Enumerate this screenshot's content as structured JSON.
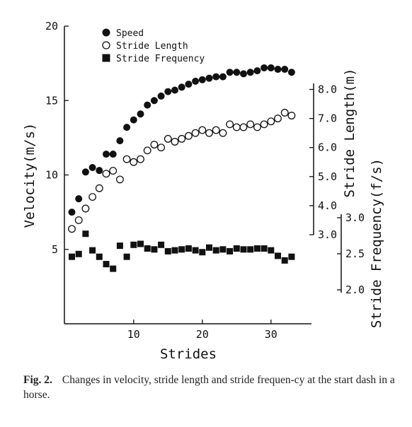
{
  "chart_data": {
    "type": "scatter",
    "x_axis": {
      "label": "Strides",
      "range": [
        0,
        35
      ],
      "ticks": [
        "10",
        "20",
        "30"
      ],
      "tick_values": [
        10,
        20,
        30
      ]
    },
    "y_axes": [
      {
        "id": "velocity",
        "label": "Velocity(m/s)",
        "range": [
          0,
          20
        ],
        "ticks": [
          "5",
          "10",
          "15",
          "20"
        ],
        "tick_values": [
          5,
          10,
          15,
          20
        ]
      },
      {
        "id": "stride_length",
        "label": "Stride Length(m)",
        "range": [
          3.0,
          8.0
        ],
        "ticks": [
          "3.0",
          "4.0",
          "5.0",
          "6.0",
          "7.0",
          "8.0"
        ],
        "tick_values": [
          3,
          4,
          5,
          6,
          7,
          8
        ]
      },
      {
        "id": "stride_frequency",
        "label": "Stride Frequency(f/s)",
        "range": [
          2.0,
          3.0
        ],
        "ticks": [
          "2.0",
          "2.5",
          "3.0"
        ],
        "tick_values": [
          2.0,
          2.5,
          3.0
        ]
      }
    ],
    "legend_position": "top-left",
    "grid": false,
    "series": [
      {
        "name": "Speed",
        "marker": "filled-circle",
        "axis": "velocity",
        "x": [
          1,
          2,
          3,
          4,
          5,
          6,
          7,
          8,
          9,
          10,
          11,
          12,
          13,
          14,
          15,
          16,
          17,
          18,
          19,
          20,
          21,
          22,
          23,
          24,
          25,
          26,
          27,
          28,
          29,
          30,
          31,
          32,
          33
        ],
        "values": [
          7.5,
          8.4,
          10.2,
          10.5,
          10.3,
          11.4,
          11.4,
          12.3,
          13.2,
          13.7,
          14.1,
          14.7,
          15.0,
          15.3,
          15.6,
          15.7,
          15.9,
          16.1,
          16.3,
          16.4,
          16.5,
          16.6,
          16.6,
          16.9,
          16.9,
          16.8,
          16.9,
          17.0,
          17.2,
          17.2,
          17.1,
          17.1,
          16.9
        ]
      },
      {
        "name": "Stride Length",
        "marker": "open-circle",
        "axis": "stride_length",
        "x": [
          1,
          2,
          3,
          4,
          5,
          6,
          7,
          8,
          9,
          10,
          11,
          12,
          13,
          14,
          15,
          16,
          17,
          18,
          19,
          20,
          21,
          22,
          23,
          24,
          25,
          26,
          27,
          28,
          29,
          30,
          31,
          32,
          33
        ],
        "values": [
          3.2,
          3.5,
          3.9,
          4.3,
          4.6,
          5.1,
          5.2,
          4.9,
          5.6,
          5.5,
          5.6,
          5.9,
          6.1,
          6.0,
          6.3,
          6.2,
          6.3,
          6.4,
          6.5,
          6.6,
          6.5,
          6.6,
          6.5,
          6.8,
          6.7,
          6.7,
          6.8,
          6.7,
          6.8,
          6.9,
          7.0,
          7.2,
          7.1
        ]
      },
      {
        "name": "Stride Frequency",
        "marker": "filled-square",
        "axis": "stride_frequency",
        "x": [
          1,
          2,
          3,
          4,
          5,
          6,
          7,
          8,
          9,
          10,
          11,
          12,
          13,
          14,
          15,
          16,
          17,
          18,
          19,
          20,
          21,
          22,
          23,
          24,
          25,
          26,
          27,
          28,
          29,
          30,
          31,
          32,
          33
        ],
        "values": [
          2.42,
          2.45,
          2.67,
          2.49,
          2.42,
          2.34,
          2.29,
          2.54,
          2.42,
          2.55,
          2.56,
          2.51,
          2.5,
          2.55,
          2.48,
          2.49,
          2.5,
          2.51,
          2.49,
          2.47,
          2.52,
          2.49,
          2.5,
          2.48,
          2.51,
          2.5,
          2.5,
          2.51,
          2.51,
          2.49,
          2.43,
          2.38,
          2.42
        ]
      }
    ]
  },
  "caption": {
    "label": "Fig. 2.",
    "text": "Changes in velocity, stride length and stride frequen-cy at the start dash in a horse."
  }
}
